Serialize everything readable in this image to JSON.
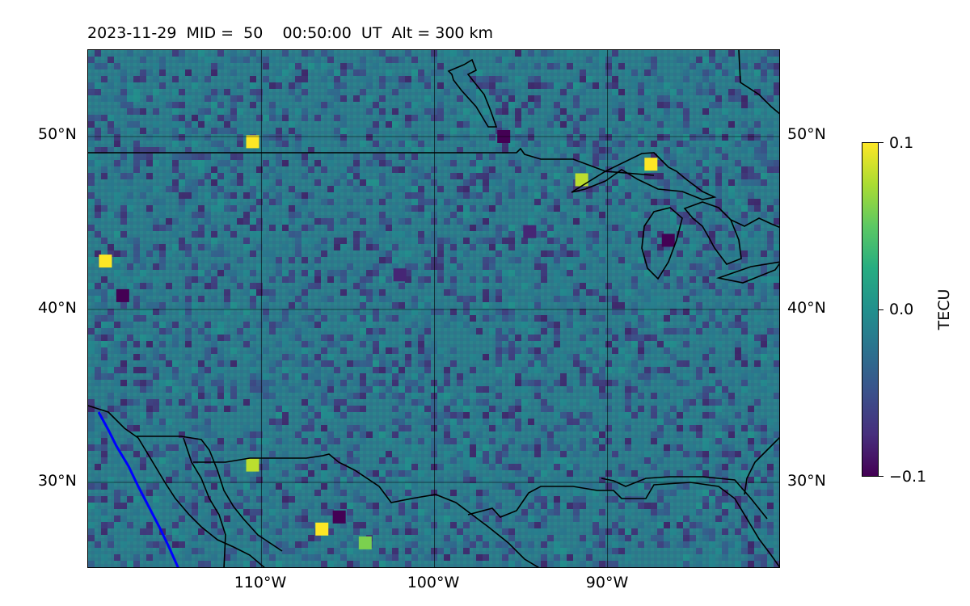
{
  "title": "2023-11-29  MID =  50    00:50:00  UT  Alt = 300 km",
  "map": {
    "projection": "PlateCarree",
    "lon_range": [
      -120,
      -80
    ],
    "lat_range": [
      25,
      55
    ],
    "lat_ticks": [
      {
        "value": 50,
        "label": "50°N"
      },
      {
        "value": 40,
        "label": "40°N"
      },
      {
        "value": 30,
        "label": "30°N"
      }
    ],
    "lon_ticks": [
      {
        "value": -110,
        "label": "110°W"
      },
      {
        "value": -100,
        "label": "100°W"
      },
      {
        "value": -90,
        "label": "90°W"
      }
    ],
    "grid": true,
    "coastline_color": "#000000",
    "highlight_line_color": "#0000ff"
  },
  "colorbar": {
    "label": "TECU",
    "min": -0.1,
    "max": 0.1,
    "colormap": "viridis",
    "ticks": [
      {
        "value": 0.1,
        "label": "0.1"
      },
      {
        "value": 0.0,
        "label": "0.0"
      },
      {
        "value": -0.1,
        "label": "−0.1"
      }
    ]
  },
  "chart_data": {
    "type": "heatmap",
    "title": "2023-11-29  MID =  50    00:50:00  UT  Alt = 300 km",
    "xlabel": "",
    "ylabel": "",
    "x_range": [
      -120,
      -80
    ],
    "y_range": [
      25,
      55
    ],
    "value_label": "TECU",
    "vmin": -0.1,
    "vmax": 0.1,
    "grid": true,
    "hotspots": [
      {
        "lon": -106.5,
        "lat": 27.3,
        "value": 0.1
      },
      {
        "lon": -119.0,
        "lat": 42.8,
        "value": 0.1
      },
      {
        "lon": -110.5,
        "lat": 49.7,
        "value": 0.1
      },
      {
        "lon": -87.5,
        "lat": 48.4,
        "value": 0.1
      },
      {
        "lon": -91.5,
        "lat": 47.5,
        "value": 0.08
      },
      {
        "lon": -110.5,
        "lat": 31.0,
        "value": 0.08
      },
      {
        "lon": -104.0,
        "lat": 26.5,
        "value": 0.06
      }
    ],
    "coldspots": [
      {
        "lon": -118.0,
        "lat": 40.8,
        "value": -0.1
      },
      {
        "lon": -96.0,
        "lat": 50.0,
        "value": -0.1
      },
      {
        "lon": -86.5,
        "lat": 44.0,
        "value": -0.1
      },
      {
        "lon": -105.5,
        "lat": 28.0,
        "value": -0.1
      },
      {
        "lon": -102.0,
        "lat": 42.0,
        "value": -0.08
      },
      {
        "lon": -94.5,
        "lat": 44.5,
        "value": -0.08
      }
    ]
  }
}
